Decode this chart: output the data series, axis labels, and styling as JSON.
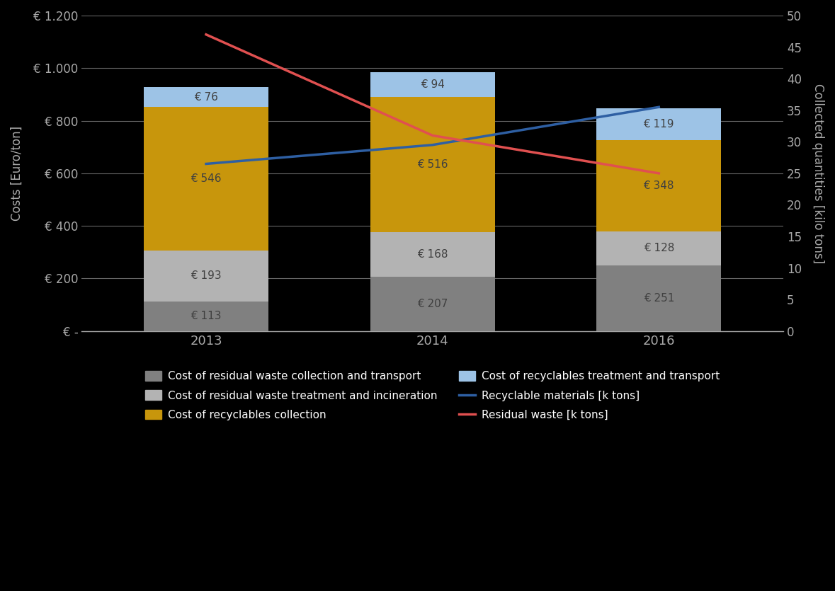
{
  "years": [
    "2013",
    "2014",
    "2016"
  ],
  "bar_positions": [
    0,
    1,
    2
  ],
  "residual_collection": [
    113,
    207,
    251
  ],
  "residual_treatment": [
    193,
    168,
    128
  ],
  "recyclables_collection": [
    546,
    516,
    348
  ],
  "recyclables_treatment": [
    76,
    94,
    119
  ],
  "recyclable_materials_ktons": [
    26.5,
    29.5,
    35.5
  ],
  "residual_waste_ktons": [
    47.0,
    31.0,
    25.0
  ],
  "colors": {
    "residual_collection": "#808080",
    "residual_treatment": "#b3b3b3",
    "recyclables_collection": "#c8960c",
    "recyclables_treatment": "#9dc3e6",
    "recyclable_line": "#2e5fa3",
    "residual_line": "#e05050"
  },
  "ylabel_left": "Costs [Euro/ton]",
  "ylabel_right": "Collected quantities [kilo tons]",
  "yticks_left": [
    0,
    200,
    400,
    600,
    800,
    1000,
    1200
  ],
  "ytick_labels_left": [
    "€ -",
    "€ 200",
    "€ 400",
    "€ 600",
    "€ 800",
    "€ 1.000",
    "€ 1.200"
  ],
  "yticks_right": [
    0,
    5,
    10,
    15,
    20,
    25,
    30,
    35,
    40,
    45,
    50
  ],
  "ylim_left": [
    0,
    1200
  ],
  "ylim_right": [
    0,
    50
  ],
  "bar_width": 0.55,
  "background_color": "#000000",
  "text_color": "#ffffff",
  "label_text_color": "#404040",
  "legend_labels": [
    "Cost of residual waste collection and transport",
    "Cost of residual waste treatment and incineration",
    "Cost of recyclables collection",
    "Cost of recyclables treatment and transport",
    "Recyclable materials [k tons]",
    "Residual waste [k tons]"
  ]
}
